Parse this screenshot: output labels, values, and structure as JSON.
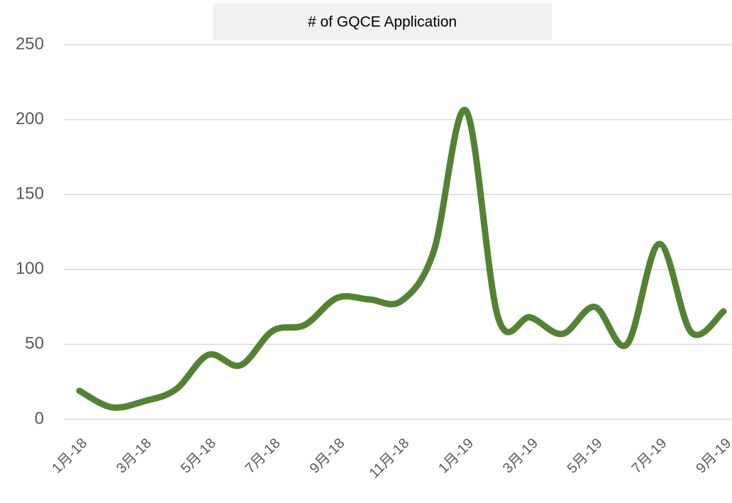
{
  "chart_data": {
    "type": "line",
    "title": "# of GQCE Application",
    "categories": [
      "1月-18",
      null,
      "3月-18",
      null,
      "5月-18",
      null,
      "7月-18",
      null,
      "9月-18",
      null,
      "11月-18",
      null,
      "1月-19",
      null,
      "3月-19",
      null,
      "5月-19",
      null,
      "7月-19",
      null,
      "9月-19"
    ],
    "series": [
      {
        "name": "# of GQCE Application",
        "color": "#548235",
        "values": [
          19,
          8,
          12,
          20,
          43,
          36,
          59,
          63,
          81,
          80,
          79,
          112,
          206,
          68,
          68,
          57,
          75,
          50,
          117,
          58,
          72
        ]
      }
    ],
    "ylim": [
      0,
      250
    ],
    "yticks": [
      0,
      50,
      100,
      150,
      200,
      250
    ],
    "grid": true
  }
}
